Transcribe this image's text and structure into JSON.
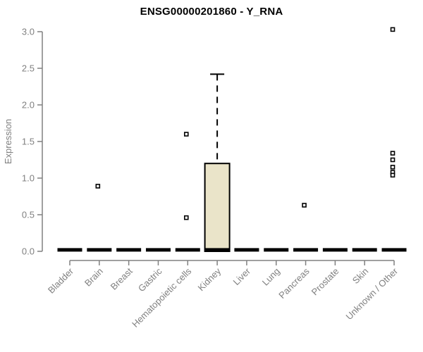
{
  "title": "ENSG00000201860 - Y_RNA",
  "chart_data": {
    "type": "boxplot",
    "title": "ENSG00000201860 - Y_RNA",
    "xlabel": "",
    "ylabel": "Expression",
    "ylim": [
      0.0,
      3.0
    ],
    "ytick_labels": [
      "0.0",
      "0.5",
      "1.0",
      "1.5",
      "2.0",
      "2.5",
      "3.0"
    ],
    "ytick_values": [
      0.0,
      0.5,
      1.0,
      1.5,
      2.0,
      2.5,
      3.0
    ],
    "grid": false,
    "legend": "none",
    "axis_color": "#808080",
    "tick_label_color": "#808080",
    "title_color": "#000000",
    "box_fill_color": "#EAE4C9",
    "box_stroke_color": "#000000",
    "median_color": "#000000",
    "outlier_marker": "open-square",
    "categories": [
      "Bladder",
      "Brain",
      "Breast",
      "Gastric",
      "Hematopoietic cells",
      "Kidney",
      "Liver",
      "Lung",
      "Pancreas",
      "Prostate",
      "Skin",
      "Unknown / Other"
    ],
    "boxes": [
      {
        "category": "Bladder",
        "q1": 0.0,
        "median": 0.02,
        "q3": 0.0,
        "whisker_low": 0.0,
        "whisker_high": 0.0,
        "outliers": []
      },
      {
        "category": "Brain",
        "q1": 0.0,
        "median": 0.02,
        "q3": 0.0,
        "whisker_low": 0.0,
        "whisker_high": 0.0,
        "outliers": [
          0.89
        ]
      },
      {
        "category": "Breast",
        "q1": 0.0,
        "median": 0.02,
        "q3": 0.0,
        "whisker_low": 0.0,
        "whisker_high": 0.0,
        "outliers": []
      },
      {
        "category": "Gastric",
        "q1": 0.0,
        "median": 0.02,
        "q3": 0.0,
        "whisker_low": 0.0,
        "whisker_high": 0.0,
        "outliers": []
      },
      {
        "category": "Hematopoietic cells",
        "q1": 0.0,
        "median": 0.02,
        "q3": 0.0,
        "whisker_low": 0.0,
        "whisker_high": 0.0,
        "outliers": [
          1.6,
          0.46
        ]
      },
      {
        "category": "Kidney",
        "q1": 0.0,
        "median": 0.02,
        "q3": 1.2,
        "whisker_low": 0.0,
        "whisker_high": 2.42,
        "outliers": []
      },
      {
        "category": "Liver",
        "q1": 0.0,
        "median": 0.02,
        "q3": 0.0,
        "whisker_low": 0.0,
        "whisker_high": 0.0,
        "outliers": []
      },
      {
        "category": "Lung",
        "q1": 0.0,
        "median": 0.02,
        "q3": 0.0,
        "whisker_low": 0.0,
        "whisker_high": 0.0,
        "outliers": []
      },
      {
        "category": "Pancreas",
        "q1": 0.0,
        "median": 0.02,
        "q3": 0.0,
        "whisker_low": 0.0,
        "whisker_high": 0.0,
        "outliers": [
          0.63
        ]
      },
      {
        "category": "Prostate",
        "q1": 0.0,
        "median": 0.02,
        "q3": 0.0,
        "whisker_low": 0.0,
        "whisker_high": 0.0,
        "outliers": []
      },
      {
        "category": "Skin",
        "q1": 0.0,
        "median": 0.02,
        "q3": 0.0,
        "whisker_low": 0.0,
        "whisker_high": 0.0,
        "outliers": []
      },
      {
        "category": "Unknown / Other",
        "q1": 0.0,
        "median": 0.02,
        "q3": 0.0,
        "whisker_low": 0.0,
        "whisker_high": 0.0,
        "outliers": [
          3.03,
          1.34,
          1.25,
          1.15,
          1.08,
          1.04
        ]
      }
    ]
  }
}
